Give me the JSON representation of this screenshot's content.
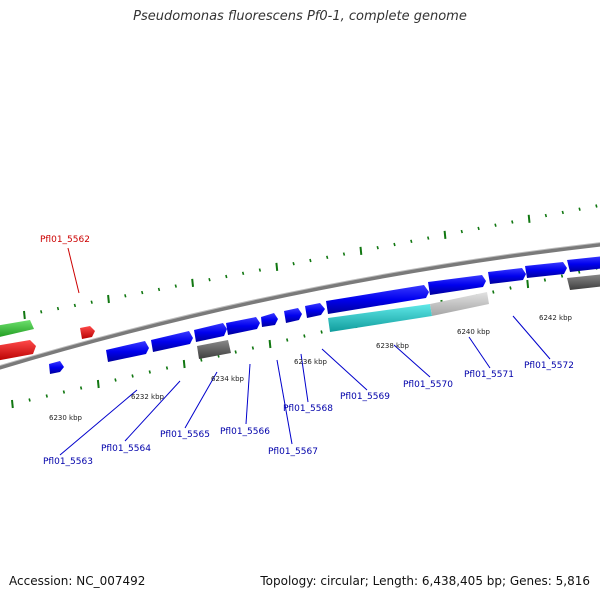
{
  "title": "Pseudomonas fluorescens Pf0-1, complete genome",
  "footer": {
    "accession": "Accession: NC_007492",
    "stats": "Topology: circular; Length: 6,438,405 bp; Genes: 5,816"
  },
  "scale_labels": [
    "6230 kbp",
    "6232 kbp",
    "6234 kbp",
    "6236 kbp",
    "6238 kbp",
    "6240 kbp",
    "6242 kbp"
  ],
  "gene_labels": [
    {
      "text": "Pfl01_5562",
      "color": "#cc0000"
    },
    {
      "text": "Pfl01_5563",
      "color": "#0000aa"
    },
    {
      "text": "Pfl01_5564",
      "color": "#0000aa"
    },
    {
      "text": "Pfl01_5565",
      "color": "#0000aa"
    },
    {
      "text": "Pfl01_5566",
      "color": "#0000aa"
    },
    {
      "text": "Pfl01_5567",
      "color": "#0000aa"
    },
    {
      "text": "Pfl01_5568",
      "color": "#0000aa"
    },
    {
      "text": "Pfl01_5569",
      "color": "#0000aa"
    },
    {
      "text": "Pfl01_5570",
      "color": "#0000aa"
    },
    {
      "text": "Pfl01_5571",
      "color": "#0000aa"
    },
    {
      "text": "Pfl01_5572",
      "color": "#0000aa"
    }
  ],
  "feature_colors": {
    "cds": "#0000ee",
    "rna": "#ee0000",
    "green": "#33cc33",
    "pseudo": "#666666",
    "cyan": "#22cccc",
    "light_gray": "#c0c0c0",
    "backbone": "#888888"
  }
}
